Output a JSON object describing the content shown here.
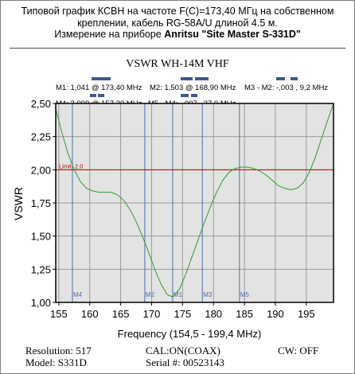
{
  "header": {
    "line1": "Типовой график КСВН на частоте F(C)=173,40 МГц на собственном",
    "line2": "креплении, кабель RG-58A/U длиной 4.5 м.",
    "line3_prefix": "Измерение на приборе ",
    "line3_bold": "Anritsu \"Site Master S-331D\""
  },
  "chart_data": {
    "type": "line",
    "title": "VSWR WH-14M VHF",
    "xlabel": "Frequency  (154,5 - 199,4 MHz)",
    "ylabel": "VSWR",
    "xlim": [
      154.5,
      199.4
    ],
    "ylim": [
      1.0,
      2.5
    ],
    "x_ticks": [
      "155",
      "160",
      "165",
      "170",
      "175",
      "180",
      "185",
      "190",
      "195"
    ],
    "y_ticks": [
      "1,00",
      "1,25",
      "1,50",
      "1,75",
      "2,00",
      "2,25",
      "2,50"
    ],
    "grid": true,
    "limit": {
      "label": "Limit: 2.0",
      "value": 2.0
    },
    "series": [
      {
        "x": [
          154.5,
          155.5,
          156.5,
          157.5,
          158.5,
          159.5,
          160.5,
          161.5,
          162.5,
          163.5,
          164.5,
          165.5,
          166.5,
          167.5,
          168.5,
          169.5,
          170.5,
          171.5,
          172.5,
          173.4,
          174.5,
          175.5,
          176.5,
          177.5,
          178.5,
          179.5,
          180.5,
          181.5,
          182.5,
          183.5,
          184.5,
          185.5,
          186.5,
          187.5,
          188.5,
          189.5,
          190.5,
          191.5,
          192.5,
          193.5,
          194.5,
          195.5,
          196.5,
          197.5,
          198.5,
          199.4
        ],
        "y": [
          2.46,
          2.28,
          2.12,
          2.0,
          1.91,
          1.86,
          1.84,
          1.83,
          1.83,
          1.83,
          1.81,
          1.77,
          1.7,
          1.61,
          1.5,
          1.38,
          1.25,
          1.14,
          1.06,
          1.04,
          1.1,
          1.21,
          1.34,
          1.47,
          1.6,
          1.72,
          1.83,
          1.92,
          1.98,
          2.01,
          2.02,
          2.02,
          2.01,
          1.99,
          1.96,
          1.92,
          1.88,
          1.86,
          1.85,
          1.86,
          1.9,
          1.98,
          2.1,
          2.24,
          2.38,
          2.5
        ]
      }
    ],
    "markers": [
      {
        "label": "M1",
        "x": 173.4
      },
      {
        "label": "M2",
        "x": 168.9
      },
      {
        "label": "M3",
        "x": 178.2
      },
      {
        "label": "M4",
        "x": 157.2
      },
      {
        "label": "M5",
        "x": 184.2
      }
    ],
    "readouts": [
      {
        "row": 1,
        "text": "M1: 1,041  @ 173,40 MHz"
      },
      {
        "row": 1,
        "text": "M2: 1,503  @ 168,90 MHz"
      },
      {
        "row": 1,
        "text": "M3 - M2: -,003  , 9,2 MHz"
      },
      {
        "row": 2,
        "text": "M4: 2,009  @ 157,20 MHz"
      },
      {
        "row": 2,
        "text": "M5 - M4: -,007  , 27,0 MHz"
      }
    ]
  },
  "footer": {
    "resolution": "Resolution:  517",
    "model": "Model: S331D",
    "cal": "CAL:ON(COAX)",
    "serial": "Serial #: 00523143",
    "cw": "CW: OFF"
  },
  "colors": {
    "plot_bg": "#e3e3e3",
    "trace": "#2f9a2f",
    "marker": "#4a6fb0",
    "limit": "#c00000",
    "readout_bar": "#3d5a8e",
    "grid": "#9a9a9a"
  }
}
